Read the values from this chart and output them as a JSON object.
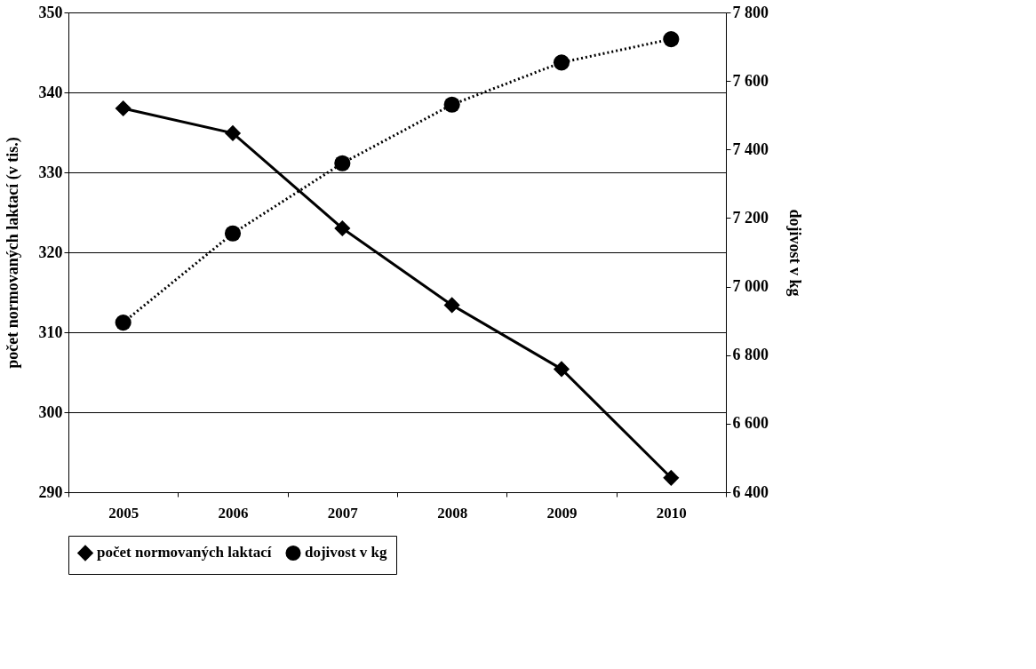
{
  "chart_data": {
    "type": "line",
    "categories": [
      "2005",
      "2006",
      "2007",
      "2008",
      "2009",
      "2010"
    ],
    "ylabel": "počet normovaných laktací (v tis.)",
    "y2label": "dojivost v kg",
    "ylim": [
      290,
      350
    ],
    "yticks": [
      290,
      300,
      310,
      320,
      330,
      340,
      350
    ],
    "y2lim": [
      6400,
      7800
    ],
    "y2ticks": [
      {
        "value": 6400,
        "label": "6 400"
      },
      {
        "value": 6600,
        "label": "6 600"
      },
      {
        "value": 6800,
        "label": "6 800"
      },
      {
        "value": 7000,
        "label": "7 000"
      },
      {
        "value": 7200,
        "label": "7 200"
      },
      {
        "value": 7400,
        "label": "7 400"
      },
      {
        "value": 7600,
        "label": "7 600"
      },
      {
        "value": 7800,
        "label": "7 800"
      }
    ],
    "grid": "y",
    "legend": "bottom",
    "series": [
      {
        "name": "počet normovaných laktací",
        "color": "#000000",
        "marker": "diamond",
        "line_style": "solid",
        "values": [
          338.0,
          334.9,
          323.0,
          313.4,
          305.4,
          291.8
        ]
      },
      {
        "name": "dojivost v kg",
        "color": "#000000",
        "marker": "circle",
        "line_style": "dotted",
        "axis": "y2",
        "values": [
          6895,
          7155,
          7360,
          7531,
          7654,
          7722
        ]
      }
    ]
  }
}
